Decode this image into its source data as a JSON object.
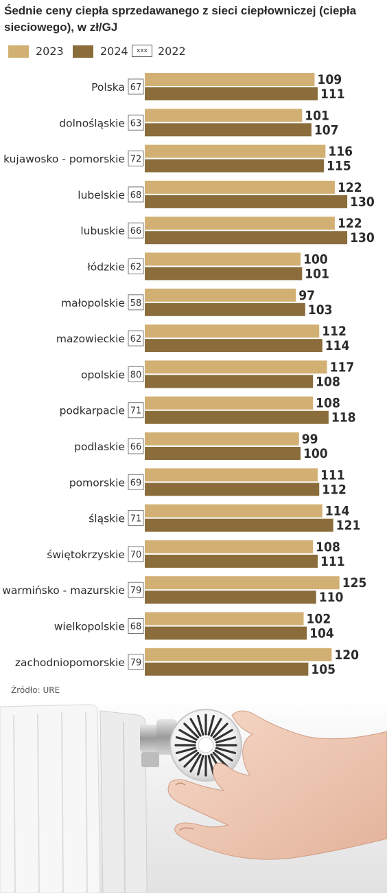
{
  "title": "Śednie ceny ciepła sprzedawanego z sieci ciepłowniczej (ciepła sieciowego), w zł/GJ",
  "legend": [
    {
      "label": "2023",
      "color": "#d2b074",
      "kind": "swatch"
    },
    {
      "label": "2024",
      "color": "#8a6d3b",
      "kind": "swatch"
    },
    {
      "label": "2022",
      "box_text": "xxx",
      "kind": "box"
    }
  ],
  "source": "Źródło: URE",
  "chart_data": {
    "type": "bar",
    "orientation": "horizontal",
    "title": "Śednie ceny ciepła sprzedawanego z sieci ciepłowniczej (ciepła sieciowego), w zł/GJ",
    "categories": [
      "Polska",
      "dolnośląskie",
      "kujawosko - pomorskie",
      "lubelskie",
      "lubuskie",
      "łódzkie",
      "małopolskie",
      "mazowieckie",
      "opolskie",
      "podkarpacie",
      "podlaskie",
      "pomorskie",
      "śląskie",
      "świętokrzyskie",
      "warmińsko - mazurskie",
      "wielkopolskie",
      "zachodniopomorskie"
    ],
    "series": [
      {
        "name": "2023",
        "color": "#d2b074",
        "values": [
          109,
          101,
          116,
          122,
          122,
          100,
          97,
          112,
          117,
          108,
          99,
          111,
          114,
          108,
          125,
          102,
          120
        ]
      },
      {
        "name": "2024",
        "color": "#8a6d3b",
        "values": [
          111,
          107,
          115,
          130,
          130,
          101,
          103,
          114,
          108,
          118,
          100,
          112,
          121,
          111,
          110,
          104,
          105
        ]
      }
    ],
    "boxed_values": {
      "name": "2022",
      "values": [
        67,
        63,
        72,
        68,
        66,
        62,
        58,
        62,
        80,
        71,
        66,
        69,
        71,
        70,
        79,
        68,
        79
      ]
    },
    "xticks": [
      0,
      50,
      100,
      150
    ],
    "xlim": [
      0,
      150
    ],
    "grid": false,
    "legend_position": "top-left"
  }
}
